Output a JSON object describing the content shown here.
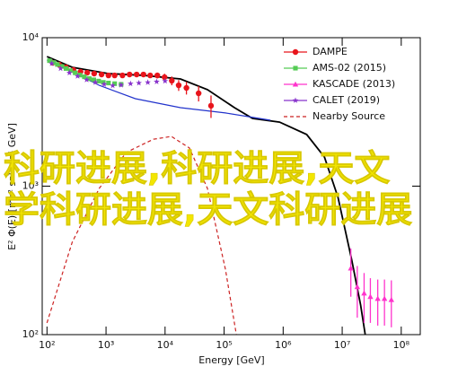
{
  "chart_data": {
    "type": "scatter",
    "xlabel": "Energy [GeV]",
    "ylabel": "E² Φ(E) [m⁻² s⁻¹ sr⁻¹ GeV]",
    "log_x": true,
    "log_y": true,
    "xlim": [
      83,
      210000000
    ],
    "ylim": [
      100,
      10000
    ],
    "xticks": [
      {
        "value": 100,
        "label": "10²"
      },
      {
        "value": 1000,
        "label": "10³"
      },
      {
        "value": 10000,
        "label": "10⁴"
      },
      {
        "value": 100000,
        "label": "10⁵"
      },
      {
        "value": 1000000,
        "label": "10⁶"
      },
      {
        "value": 10000000,
        "label": "10⁷"
      },
      {
        "value": 100000000,
        "label": "10⁸"
      }
    ],
    "yticks": [
      {
        "value": 100,
        "label": "10²"
      },
      {
        "value": 1000,
        "label": "10³"
      },
      {
        "value": 10000,
        "label": "10⁴"
      }
    ],
    "legend": "top-right",
    "series": [
      {
        "name": "DAMPE",
        "color": "#e8141b",
        "marker": "circle",
        "x": [
          125,
          160,
          210,
          280,
          370,
          480,
          630,
          840,
          1100,
          1400,
          1900,
          2500,
          3300,
          4300,
          5600,
          7400,
          9800,
          13000,
          17000,
          23000,
          37000,
          60000
        ],
        "values": [
          6770,
          6590,
          6320,
          6060,
          5890,
          5810,
          5730,
          5650,
          5570,
          5570,
          5570,
          5650,
          5650,
          5650,
          5570,
          5570,
          5420,
          5130,
          4780,
          4590,
          4220,
          3480
        ],
        "errors": [
          150,
          150,
          150,
          150,
          150,
          150,
          150,
          150,
          150,
          150,
          150,
          160,
          170,
          200,
          220,
          250,
          300,
          350,
          400,
          450,
          500,
          600
        ]
      },
      {
        "name": "AMS-02 (2015)",
        "color": "#55cc55",
        "marker": "square",
        "x": [
          110,
          130,
          150,
          180,
          210,
          250,
          300,
          360,
          430,
          520,
          620,
          750,
          900,
          1100,
          1400,
          1800
        ],
        "values": [
          7000,
          6800,
          6600,
          6400,
          6200,
          6000,
          5800,
          5600,
          5450,
          5300,
          5200,
          5100,
          5000,
          4950,
          4900,
          4850
        ]
      },
      {
        "name": "KASCADE (2013)",
        "color": "#ff33cc",
        "marker": "triangle",
        "x": [
          14000000,
          18000000,
          23500000,
          30000000,
          40000000,
          52000000,
          68000000
        ],
        "values": [
          280,
          210,
          190,
          180,
          175,
          175,
          172
        ],
        "errors": [
          100,
          80,
          70,
          60,
          60,
          60,
          60
        ]
      },
      {
        "name": "CALET (2019)",
        "color": "#8833cc",
        "marker": "star",
        "x": [
          120,
          170,
          240,
          330,
          470,
          660,
          930,
          1300,
          1800,
          2600,
          3600,
          5100,
          7200,
          10000
        ],
        "values": [
          6700,
          6200,
          5800,
          5500,
          5200,
          5000,
          4850,
          4750,
          4800,
          4900,
          4950,
          5000,
          5050,
          5100
        ]
      }
    ],
    "curves": [
      {
        "color": "#000000",
        "style": "solid",
        "x": [
          100,
          267,
          1090,
          4460,
          18200,
          52200,
          150000,
          303000,
          869000,
          2500000,
          5000000,
          8500000,
          14500000,
          20500000,
          24500000
        ],
        "values": [
          7460,
          6320,
          5730,
          5570,
          5270,
          4470,
          3380,
          2860,
          2700,
          2230,
          1570,
          840,
          318,
          158,
          100
        ]
      },
      {
        "color": "#2233cc",
        "style": "solid",
        "x": [
          100,
          267,
          767,
          3130,
          18200,
          105000,
          611000
        ],
        "values": [
          7060,
          5890,
          4780,
          3880,
          3380,
          3110,
          2780
        ]
      },
      {
        "name": "Nearby Source",
        "color": "#cc2222",
        "style": "dashed",
        "x": [
          100,
          267,
          767,
          2210,
          6340,
          12800,
          25800,
          52200,
          105000,
          161000
        ],
        "values": [
          120,
          419,
          966,
          1690,
          2070,
          2160,
          1810,
          966,
          276,
          100
        ]
      }
    ],
    "overlay_text": [
      "科研进展,科研进展,天文",
      "学科研进展,天文科研进展"
    ]
  }
}
